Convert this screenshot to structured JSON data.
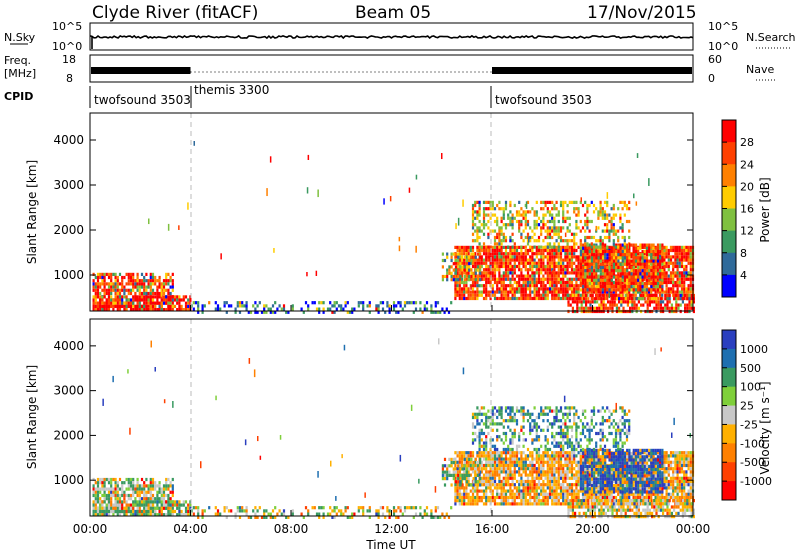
{
  "header": {
    "station": "Clyde River (fitACF)",
    "beam": "Beam 05",
    "date": "17/Nov/2015"
  },
  "top_panels": {
    "nsky": {
      "label": "N.Sky",
      "ticks": [
        "10^5",
        "10^0"
      ],
      "right_label": "N.Search",
      "right_ticks": [
        "10^5",
        "10^0"
      ]
    },
    "freq": {
      "label": "Freq.",
      "unit": "[MHz]",
      "ticks": [
        "18",
        "8"
      ],
      "right_label": "Nave",
      "right_ticks": [
        "60",
        "0"
      ]
    },
    "cpid": {
      "label": "CPID",
      "modes": [
        {
          "name": "twofsound 3503",
          "start_h": 0,
          "end_h": 4
        },
        {
          "name": "themis 3300",
          "start_h": 4,
          "end_h": 16
        },
        {
          "name": "twofsound 3503",
          "start_h": 16,
          "end_h": 24
        }
      ]
    }
  },
  "chart_data": [
    {
      "type": "heatmap",
      "title": "",
      "ylabel": "Slant Range [km]",
      "xlabel": "",
      "xlim": [
        0,
        24
      ],
      "ylim": [
        200,
        4600
      ],
      "yticks": [
        "1000",
        "2000",
        "3000",
        "4000"
      ],
      "colorbar": {
        "label": "Power [dB]",
        "ticks": [
          "28",
          "24",
          "20",
          "16",
          "12",
          "8",
          "4"
        ],
        "colors": [
          "#ff0000",
          "#ff4000",
          "#ff8000",
          "#ffcc00",
          "#7fc040",
          "#3a9a60",
          "#2f6a9a",
          "#0000ff"
        ]
      }
    },
    {
      "type": "heatmap",
      "title": "",
      "ylabel": "Slant Range [km]",
      "xlabel": "Time UT",
      "xlim": [
        0,
        24
      ],
      "ylim": [
        200,
        4600
      ],
      "yticks": [
        "1000",
        "2000",
        "3000",
        "4000"
      ],
      "xticks": [
        "00:00",
        "04:00",
        "08:00",
        "12:00",
        "16:00",
        "20:00",
        "00:00"
      ],
      "colorbar": {
        "label": "Velocity [m s⁻¹]",
        "ticks": [
          "1000",
          "500",
          "100",
          "25",
          "-25",
          "-100",
          "-500",
          "-1000"
        ],
        "colors": [
          "#2a3fbf",
          "#1e6fb0",
          "#3a9a60",
          "#7fcf3a",
          "#c8c8c8",
          "#ffb000",
          "#ff8000",
          "#ff4000",
          "#ff0000"
        ]
      }
    }
  ]
}
